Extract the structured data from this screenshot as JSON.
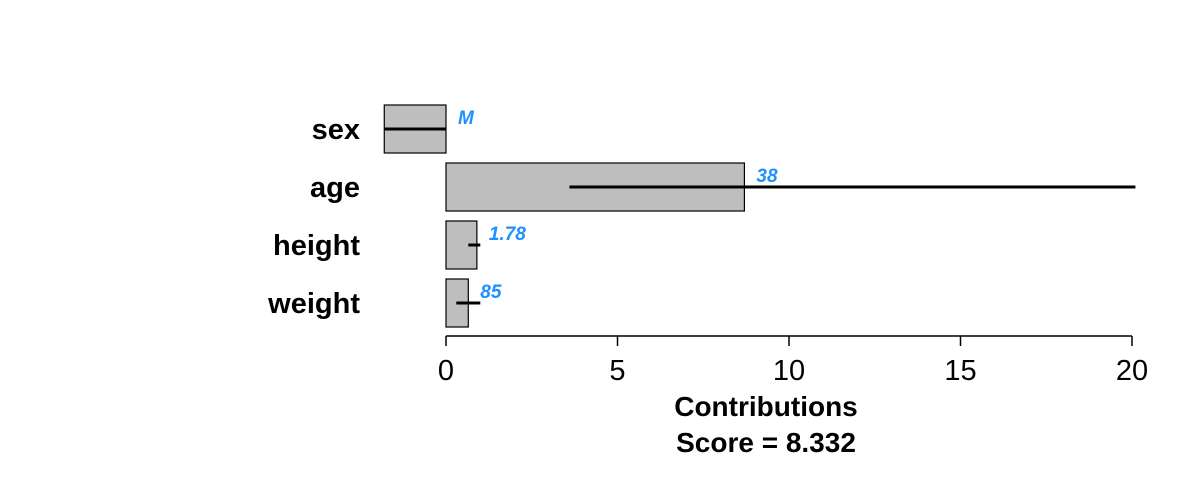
{
  "chart_data": {
    "type": "bar",
    "orientation": "horizontal",
    "categories": [
      "sex",
      "age",
      "height",
      "weight"
    ],
    "values": [
      -1.8,
      8.7,
      0.9,
      0.65
    ],
    "intervals": [
      [
        -1.8,
        0.0
      ],
      [
        3.6,
        20.1
      ],
      [
        0.65,
        1.0
      ],
      [
        0.3,
        1.0
      ]
    ],
    "value_labels": [
      "M",
      "38",
      "1.78",
      "85"
    ],
    "xlabel": "Contributions",
    "subtitle": "Score = 8.332",
    "xlim": [
      -2,
      20
    ],
    "xticks": [
      0,
      5,
      10,
      15,
      20
    ],
    "grid": false,
    "colors": {
      "bar_fill": "#bebebe",
      "bar_stroke": "#000000",
      "interval": "#000000",
      "value_label": "#1e90ff"
    }
  }
}
